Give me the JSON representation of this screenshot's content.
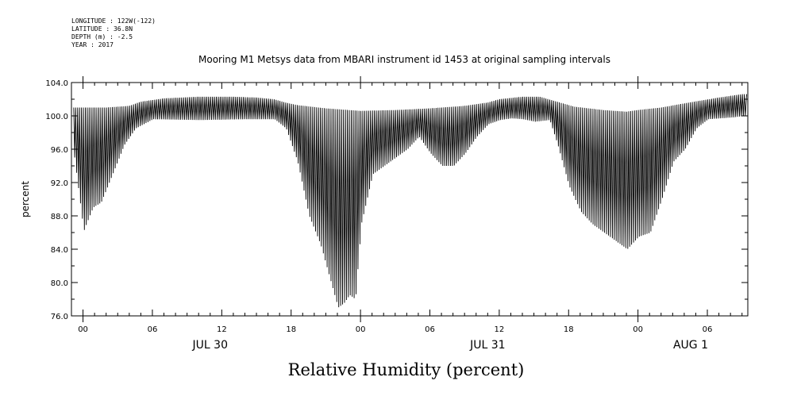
{
  "header": {
    "longitude": "LONGITUDE : 122W(-122)",
    "latitude": "LATITUDE : 36.8N",
    "depth": "DEPTH (m) : -2.5",
    "year": "YEAR : 2017"
  },
  "chart_data": {
    "type": "line",
    "title": "Mooring M1 Metsys data from MBARI instrument id 1453 at original sampling intervals",
    "main_title": "Relative Humidity (percent)",
    "ylabel": "percent",
    "xlabel": "",
    "ylim": [
      76,
      104
    ],
    "y_ticks": [
      "104.0",
      "100.0",
      "96.0",
      "92.0",
      "88.0",
      "84.0",
      "80.0",
      "76.0"
    ],
    "x_unit": "hours since Jul 30 2017 00:00",
    "xlim": [
      -1,
      57.5
    ],
    "x_ticks": [
      {
        "hour": 0,
        "label": "00"
      },
      {
        "hour": 6,
        "label": "06"
      },
      {
        "hour": 12,
        "label": "12"
      },
      {
        "hour": 18,
        "label": "18"
      },
      {
        "hour": 24,
        "label": "00"
      },
      {
        "hour": 30,
        "label": "06"
      },
      {
        "hour": 36,
        "label": "12"
      },
      {
        "hour": 42,
        "label": "18"
      },
      {
        "hour": 48,
        "label": "00"
      },
      {
        "hour": 54,
        "label": "06"
      }
    ],
    "date_labels": [
      {
        "hour": 11,
        "label": "JUL 30"
      },
      {
        "hour": 35,
        "label": "JUL 31"
      },
      {
        "hour": 59,
        "label": "AUG  1"
      }
    ],
    "series": [
      {
        "upper_envelope": {
          "x": [
            -0.8,
            2,
            4,
            5,
            7,
            10,
            13,
            15,
            16.5,
            17.5,
            18.5,
            21,
            24,
            27,
            30,
            33,
            35,
            36,
            38,
            39.5,
            40.5,
            41.5,
            42.5,
            45,
            47,
            48,
            50,
            52,
            55,
            57
          ],
          "y": [
            101.0,
            101.0,
            101.2,
            101.7,
            102.1,
            102.3,
            102.3,
            102.2,
            102.0,
            101.6,
            101.3,
            100.9,
            100.6,
            100.7,
            100.9,
            101.2,
            101.6,
            102.0,
            102.3,
            102.3,
            101.9,
            101.5,
            101.1,
            100.7,
            100.5,
            100.7,
            101.0,
            101.5,
            102.2,
            102.6
          ]
        },
        "lower_envelope": {
          "x": [
            -0.8,
            -0.3,
            0,
            0.8,
            1.5,
            2.5,
            3.5,
            4.5,
            6,
            10,
            14,
            16.5,
            17.5,
            18.5,
            19.5,
            20.5,
            21.5,
            22.0,
            22.5,
            23,
            23.5,
            24,
            25,
            26,
            27,
            28,
            29,
            30,
            31,
            32,
            33,
            34,
            35,
            36,
            37,
            38,
            39,
            40.3,
            41,
            42,
            43,
            44,
            45,
            46,
            47,
            48,
            49,
            50,
            51,
            52,
            53,
            54,
            56,
            57.2
          ],
          "y": [
            95.0,
            89.5,
            86.2,
            89.0,
            89.6,
            93.0,
            96.5,
            98.5,
            99.6,
            99.5,
            99.6,
            99.6,
            98.5,
            94.5,
            88.0,
            84.5,
            79.5,
            77.0,
            77.5,
            78.5,
            78.0,
            87.0,
            93.0,
            94.0,
            95.0,
            96.0,
            97.5,
            95.5,
            94.0,
            94.0,
            95.5,
            97.5,
            99.0,
            99.5,
            99.7,
            99.6,
            99.3,
            99.5,
            96.5,
            91.5,
            88.5,
            87.0,
            86.0,
            85.0,
            84.0,
            85.5,
            86.0,
            90.0,
            94.5,
            96.0,
            98.5,
            99.6,
            99.8,
            100.0
          ]
        }
      }
    ]
  }
}
